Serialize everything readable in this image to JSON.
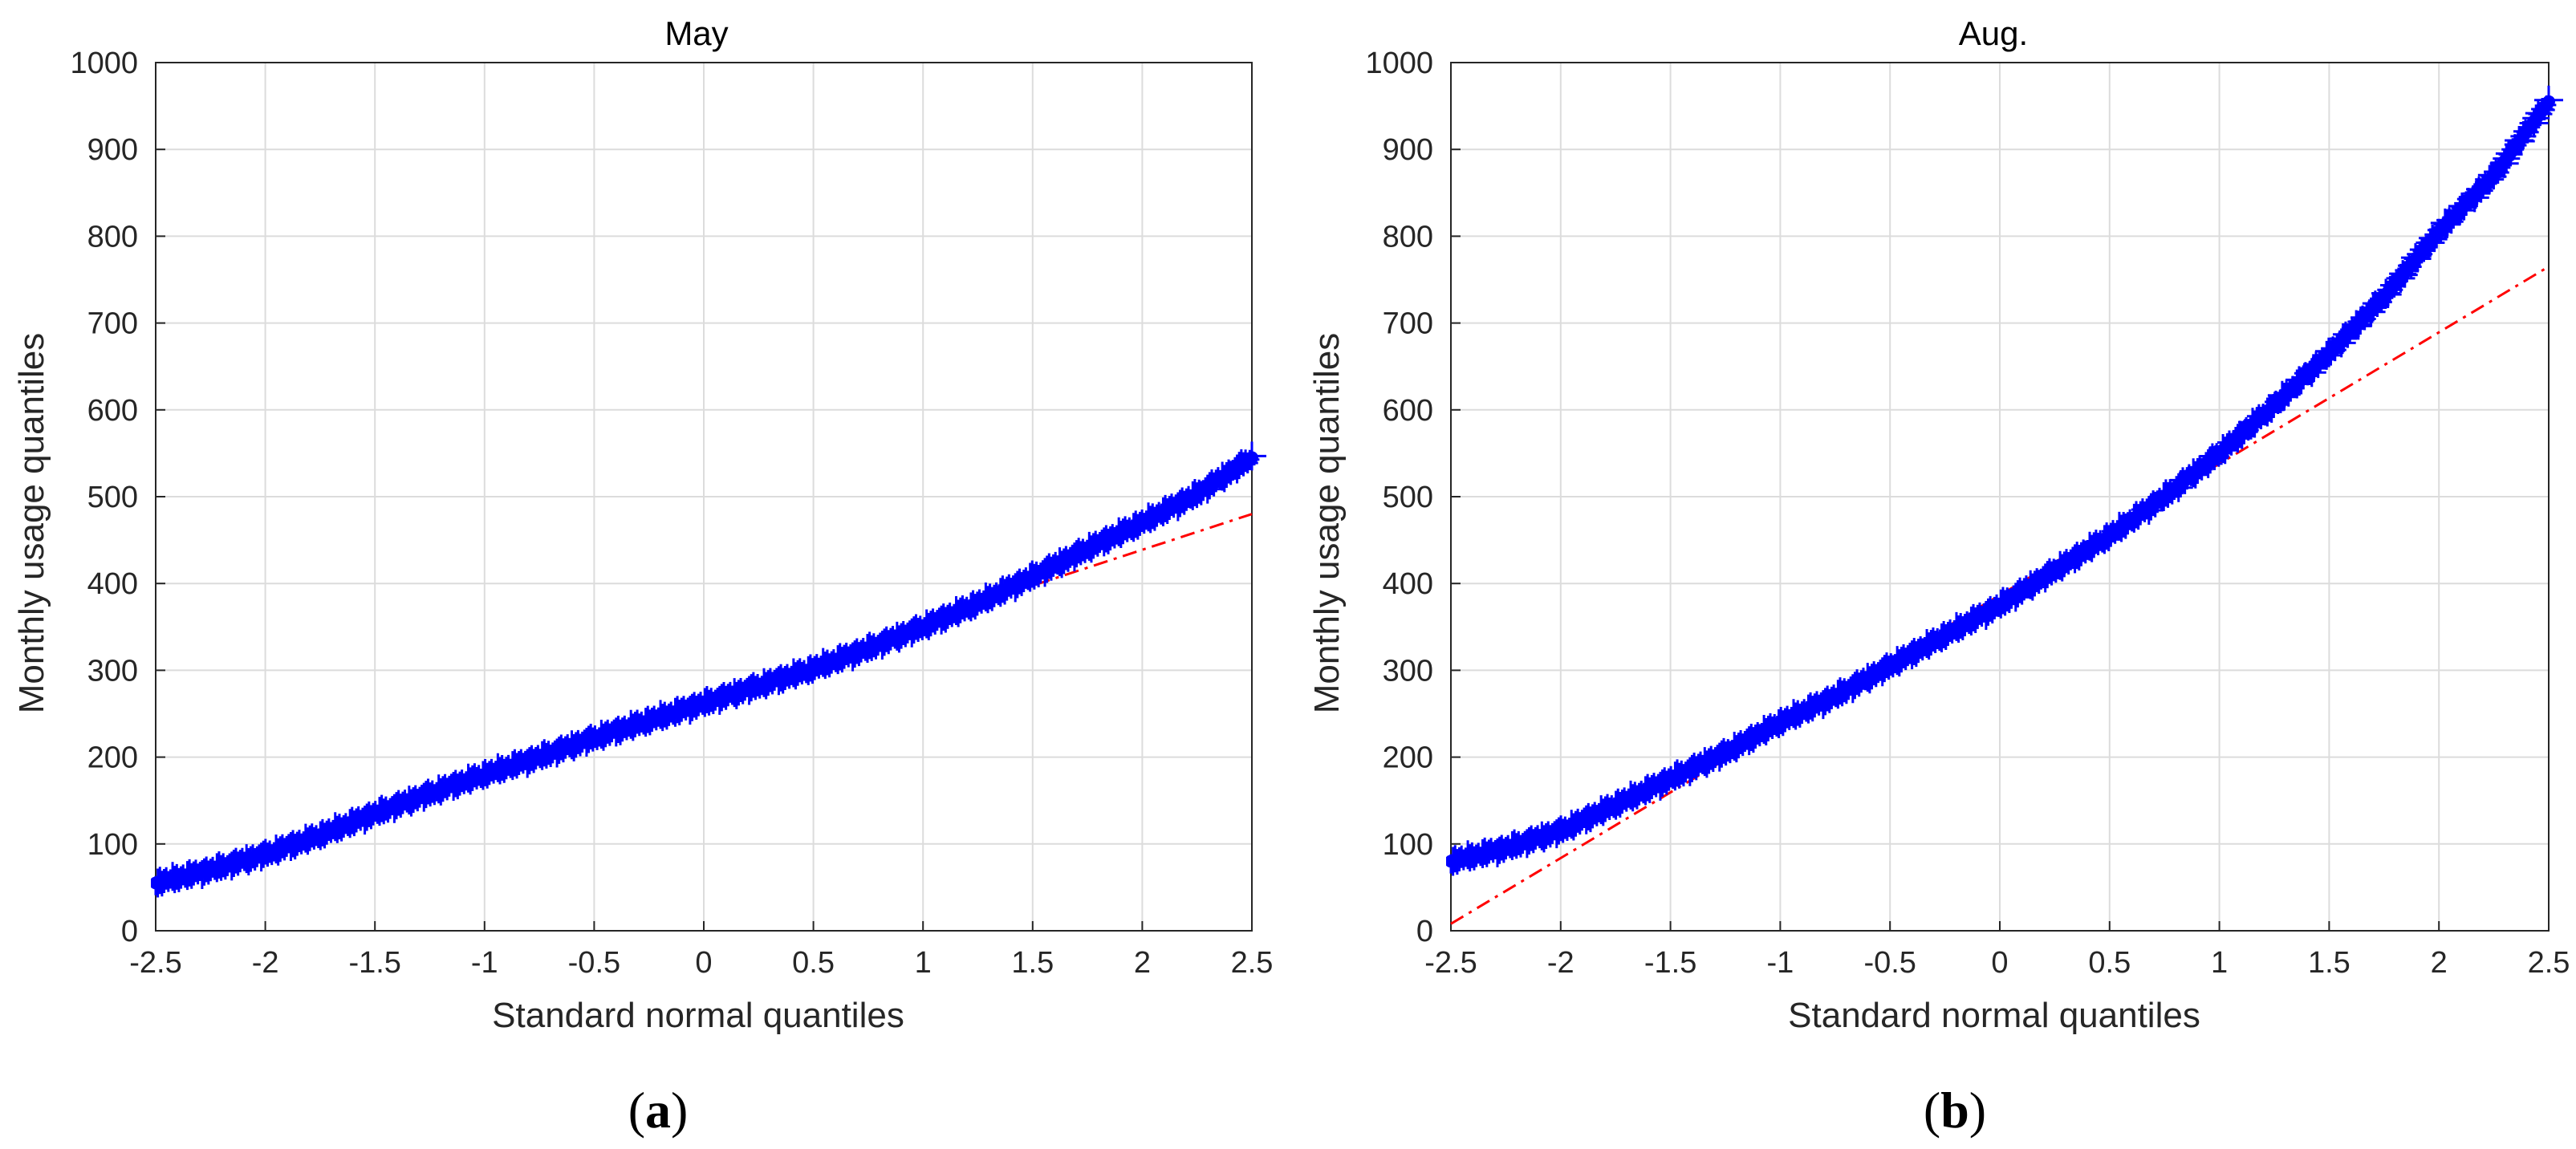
{
  "chart_data": [
    {
      "type": "scatter",
      "title": "May",
      "caption_letter": "a",
      "xlabel": "Standard normal quantiles",
      "ylabel": "Monthly usage quantiles",
      "xlim": [
        -2.5,
        2.5
      ],
      "ylim": [
        0,
        1000
      ],
      "xticks": [
        "-2.5",
        "-2",
        "-1.5",
        "-1",
        "-0.5",
        "0",
        "0.5",
        "1",
        "1.5",
        "2",
        "2.5"
      ],
      "yticks": [
        "0",
        "100",
        "200",
        "300",
        "400",
        "500",
        "600",
        "700",
        "800",
        "900",
        "1000"
      ],
      "grid": true,
      "series": [
        {
          "kind": "sample-quantiles",
          "marker": "+",
          "color": "#0000ff",
          "points": [
            [
              -2.5,
              55
            ],
            [
              -2.25,
              70
            ],
            [
              -2.0,
              88
            ],
            [
              -1.75,
              110
            ],
            [
              -1.5,
              135
            ],
            [
              -1.25,
              158
            ],
            [
              -1.0,
              180
            ],
            [
              -0.75,
              200
            ],
            [
              -0.5,
              222
            ],
            [
              -0.25,
              242
            ],
            [
              0.0,
              262
            ],
            [
              0.25,
              282
            ],
            [
              0.5,
              302
            ],
            [
              0.75,
              325
            ],
            [
              1.0,
              350
            ],
            [
              1.25,
              377
            ],
            [
              1.5,
              408
            ],
            [
              1.75,
              440
            ],
            [
              2.0,
              470
            ],
            [
              2.25,
              503
            ],
            [
              2.5,
              545
            ]
          ]
        },
        {
          "kind": "reference-line",
          "style": "dash-dot",
          "color": "#ff0000",
          "points": [
            [
              1.25,
              377
            ],
            [
              2.5,
              480
            ]
          ]
        }
      ]
    },
    {
      "type": "scatter",
      "title": "Aug.",
      "caption_letter": "b",
      "xlabel": "Standard normal quantiles",
      "ylabel": "Monthly usage quantiles",
      "xlim": [
        -2.5,
        2.5
      ],
      "ylim": [
        0,
        1000
      ],
      "xticks": [
        "-2.5",
        "-2",
        "-1.5",
        "-1",
        "-0.5",
        "0",
        "0.5",
        "1",
        "1.5",
        "2",
        "2.5"
      ],
      "yticks": [
        "0",
        "100",
        "200",
        "300",
        "400",
        "500",
        "600",
        "700",
        "800",
        "900",
        "1000"
      ],
      "grid": true,
      "series": [
        {
          "kind": "sample-quantiles",
          "marker": "+",
          "color": "#0000ff",
          "points": [
            [
              -2.5,
              80
            ],
            [
              -2.25,
              95
            ],
            [
              -2.0,
              115
            ],
            [
              -1.75,
              145
            ],
            [
              -1.5,
              175
            ],
            [
              -1.25,
              205
            ],
            [
              -1.0,
              240
            ],
            [
              -0.75,
              270
            ],
            [
              -0.5,
              305
            ],
            [
              -0.25,
              340
            ],
            [
              0.0,
              375
            ],
            [
              0.25,
              415
            ],
            [
              0.5,
              455
            ],
            [
              0.75,
              500
            ],
            [
              1.0,
              550
            ],
            [
              1.25,
              605
            ],
            [
              1.5,
              665
            ],
            [
              1.75,
              730
            ],
            [
              2.0,
              805
            ],
            [
              2.25,
              870
            ],
            [
              2.5,
              955
            ]
          ]
        },
        {
          "kind": "reference-line",
          "style": "dash-dot",
          "color": "#ff0000",
          "points": [
            [
              -2.5,
              8
            ],
            [
              2.5,
              765
            ]
          ]
        }
      ]
    }
  ]
}
